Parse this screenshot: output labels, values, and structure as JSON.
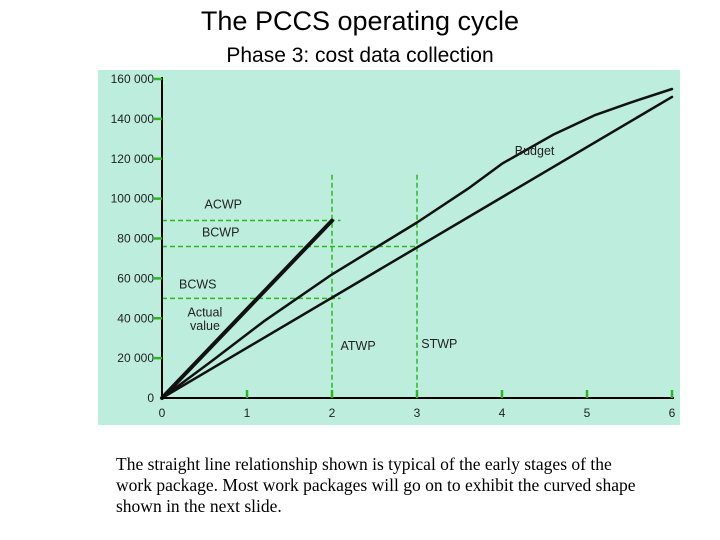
{
  "slide": {
    "title": "The PCCS operating cycle",
    "subtitle": "Phase 3: cost data collection",
    "caption_lines": [
      "The straight line relationship shown is typical of the early stages of the",
      "work package. Most work packages will go on to exhibit the curved shape",
      "shown in the next slide."
    ]
  },
  "chart_data": {
    "type": "line",
    "background_color": "#bdeedd",
    "xlim": [
      0,
      6
    ],
    "ylim": [
      0,
      160000
    ],
    "x_ticks": [
      0,
      1,
      2,
      3,
      4,
      5,
      6
    ],
    "y_ticks": [
      0,
      20000,
      40000,
      60000,
      80000,
      100000,
      120000,
      140000,
      160000
    ],
    "x_tick_labels": [
      "0",
      "1",
      "2",
      "3",
      "4",
      "5",
      "6"
    ],
    "y_tick_labels": [
      "0",
      "20 000",
      "40 000",
      "60 000",
      "80 000",
      "100 000",
      "120 000",
      "140 000",
      "160 000"
    ],
    "series": [
      {
        "name": "Budget",
        "stroke": 2.5,
        "points": [
          [
            0,
            0
          ],
          [
            6,
            151000
          ]
        ]
      },
      {
        "name": "BCWS",
        "stroke": 2.5,
        "points": [
          [
            0,
            0
          ],
          [
            0.6,
            19000
          ],
          [
            1.2,
            38500
          ],
          [
            2,
            62000
          ],
          [
            3,
            88000
          ],
          [
            3.6,
            105000
          ],
          [
            4,
            117500
          ],
          [
            4.6,
            132000
          ],
          [
            5.1,
            142000
          ],
          [
            5.5,
            148000
          ],
          [
            6,
            155000
          ]
        ]
      },
      {
        "name": "Actual value",
        "stroke": 4,
        "points": [
          [
            0,
            0
          ],
          [
            2,
            89000
          ]
        ]
      }
    ],
    "annotations": {
      "verticals": [
        {
          "label": "ATWP",
          "x": 2,
          "y_top": 112000
        },
        {
          "label": "STWP",
          "x": 3,
          "y_top": 112000
        }
      ],
      "horizontals": [
        {
          "label": "ACWP",
          "y": 89000,
          "x_end": 2.1
        },
        {
          "label": "BCWP",
          "y": 76000,
          "x_end": 3
        },
        {
          "label": "BCWS",
          "y": 50000,
          "x_end": 2.1
        }
      ],
      "text_labels": [
        {
          "text": "Budget",
          "x": 4.15,
          "y": 122000
        },
        {
          "text": "ACWP",
          "x": 0.5,
          "y": 95000
        },
        {
          "text": "BCWP",
          "x": 0.47,
          "y": 81000
        },
        {
          "text": "BCWS",
          "x": 0.2,
          "y": 55000
        },
        {
          "text": "Actual",
          "x": 0.3,
          "y": 41000
        },
        {
          "text": "value",
          "x": 0.33,
          "y": 34000
        },
        {
          "text": "ATWP",
          "x": 2.1,
          "y": 24000
        },
        {
          "text": "STWP",
          "x": 3.05,
          "y": 25000
        }
      ]
    },
    "colors": {
      "axis": "#000000",
      "lines": "#111111",
      "dashed": "#2bb81f",
      "text": "#222222"
    }
  }
}
